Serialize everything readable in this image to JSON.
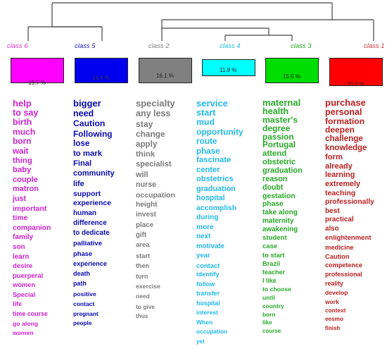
{
  "classes": [
    {
      "label": "class 6",
      "pct": "19.7 %",
      "faint_label": "",
      "box_color": "#ff00ff",
      "label_color": "#cc33cc",
      "text_color": "#cc22cc",
      "words": [
        "help",
        "to say",
        "birth",
        "much",
        "born",
        "wait",
        "thing",
        "baby",
        "couple",
        "matron",
        "just",
        "important",
        "time",
        "companion",
        "family",
        "son",
        "learn",
        "desire",
        "puerperal",
        "women",
        "Special",
        "life",
        "time course",
        "go along",
        "women"
      ]
    },
    {
      "label": "class 5",
      "pct": "16.6 %",
      "faint_label": "",
      "box_color": "#0000ee",
      "label_color": "#1a1aaa",
      "text_color": "#0a0ab0",
      "words": [
        "bigger",
        "need",
        "Caution",
        "Following",
        "lose",
        "to mark",
        "Final",
        "community",
        "life",
        "support",
        "experience",
        "human",
        "difference",
        "to dedicate",
        "palliative",
        "phase",
        "experience",
        "death",
        "path",
        "positive",
        "contact",
        "pregnant",
        "people"
      ]
    },
    {
      "label": "class 2",
      "pct": "16.1 %",
      "faint_label": "",
      "box_color": "#808080",
      "label_color": "#7a7a7a",
      "text_color": "#7a7a7a",
      "words": [
        "specialty",
        "any less",
        "stay",
        "change",
        "apply",
        "think",
        "specialist",
        "will",
        "nurse",
        "occupation",
        "height",
        "invest",
        "place",
        "gift",
        "area",
        "start",
        "then",
        "turn",
        "exercise",
        "need",
        "to give",
        "thus"
      ]
    },
    {
      "label": "class 4",
      "pct": "11.9 %",
      "faint_label": "",
      "box_color": "#00ffff",
      "label_color": "#22bbdd",
      "text_color": "#22b8e8",
      "words": [
        "service",
        "start",
        "mud",
        "opportunity",
        "route",
        "phase",
        "fascinate",
        "center",
        "obstetrics",
        "graduation",
        "hospital",
        "accomplish",
        "during",
        "more",
        "next",
        "motivate",
        "year",
        "contact",
        "identify",
        "follow",
        "transfer",
        "hospital",
        "interest",
        "When",
        "occupation",
        "yet"
      ]
    },
    {
      "label": "class 3",
      "pct": "15.5 %",
      "faint_label": "",
      "box_color": "#00dd00",
      "label_color": "#22aa22",
      "text_color": "#28a828",
      "words": [
        "maternal",
        "health",
        "master's",
        "degree",
        "passion",
        "Portugal",
        "attend",
        "obstetric",
        "graduation",
        "reason",
        "doubt",
        "gestation",
        "phase",
        "take along",
        "maternity",
        "awakening",
        "student",
        "case",
        "to start",
        "Brazil",
        "teacher",
        "I like",
        "to choose",
        "until",
        "country",
        "born",
        "like",
        "course"
      ]
    },
    {
      "label": "class 1",
      "pct": "20.2 %",
      "faint_label": "",
      "box_color": "#ff0000",
      "label_color": "#cc3333",
      "text_color": "#b82020",
      "words": [
        "purchase",
        "personal",
        "formation",
        "deepen",
        "challenge",
        "knowledge",
        "form",
        "already",
        "learning",
        "extremely",
        "teaching",
        "professionally",
        "best",
        "practical",
        "also",
        "enlightenment",
        "medicine",
        "Caution",
        "competence",
        "professional",
        "reality",
        "develop",
        "work",
        "context",
        "eesmo",
        "finish"
      ]
    }
  ]
}
